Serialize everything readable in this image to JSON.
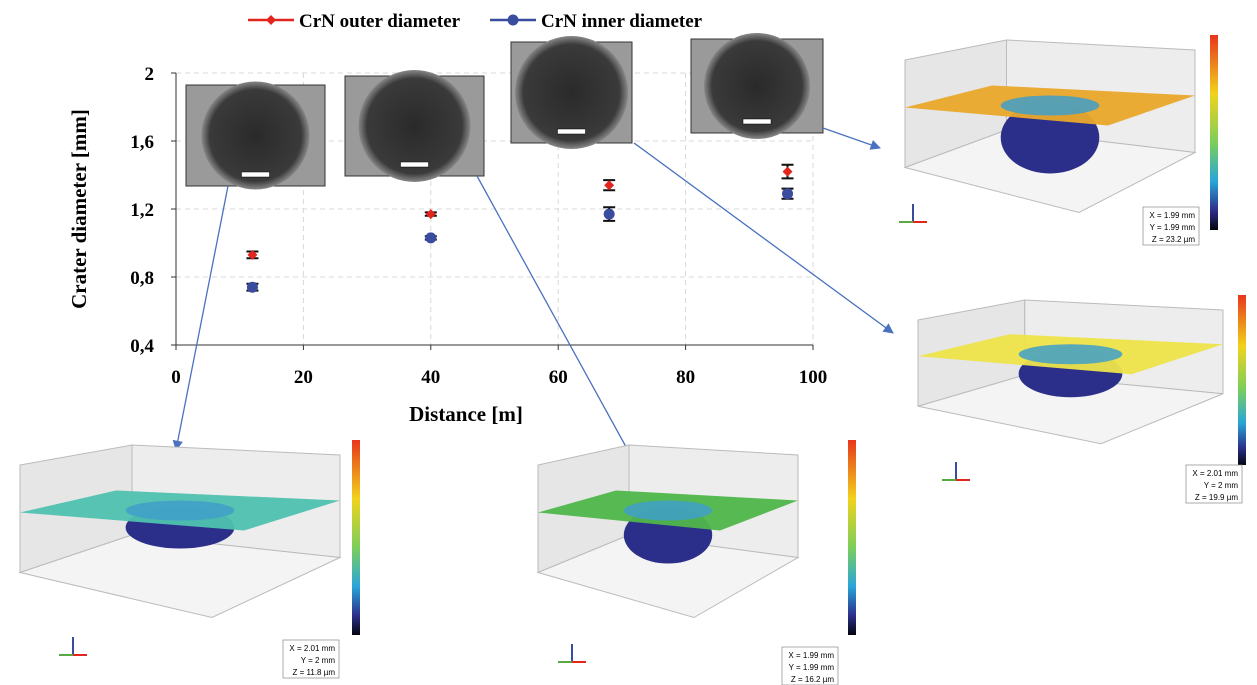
{
  "chart_data": {
    "type": "scatter",
    "x_label": "Distance [m]",
    "y_label": "Crater diameter [mm]",
    "x": [
      12,
      40,
      68,
      96
    ],
    "series": [
      {
        "name": "CrN outer diameter",
        "color": "#e3261d",
        "marker": "diamond",
        "values": [
          0.93,
          1.17,
          1.34,
          1.42
        ],
        "errors": [
          0.02,
          0.01,
          0.03,
          0.04
        ]
      },
      {
        "name": "CrN inner diameter",
        "color": "#3a4c9e",
        "marker": "circle",
        "values": [
          0.74,
          1.03,
          1.17,
          1.29
        ],
        "errors": [
          0.02,
          0.01,
          0.04,
          0.03
        ]
      }
    ],
    "xlim": [
      0,
      100
    ],
    "xticks": [
      0,
      20,
      40,
      60,
      80,
      100
    ],
    "ylim": [
      0.4,
      2
    ],
    "yticks": [
      {
        "value": 0.4,
        "label": "0,4"
      },
      {
        "value": 0.8,
        "label": "0,8"
      },
      {
        "value": 1.2,
        "label": "1,2"
      },
      {
        "value": 1.6,
        "label": "1,6"
      },
      2
    ],
    "grid": true,
    "legend": "top"
  },
  "insets": [
    {
      "info": [
        "X = 1.99 mm",
        "Y = 1.99 mm",
        "Z = 23.2 µm"
      ]
    },
    {
      "info": [
        "X = 2.01 mm",
        "Y = 2 mm",
        "Z = 19.9 µm"
      ]
    },
    {
      "info": [
        "X = 2.01 mm",
        "Y = 2 mm",
        "Z = 11.8 µm"
      ]
    },
    {
      "info": [
        "X = 1.99 mm",
        "Y = 1.99 mm",
        "Z = 16.2 µm"
      ]
    }
  ]
}
